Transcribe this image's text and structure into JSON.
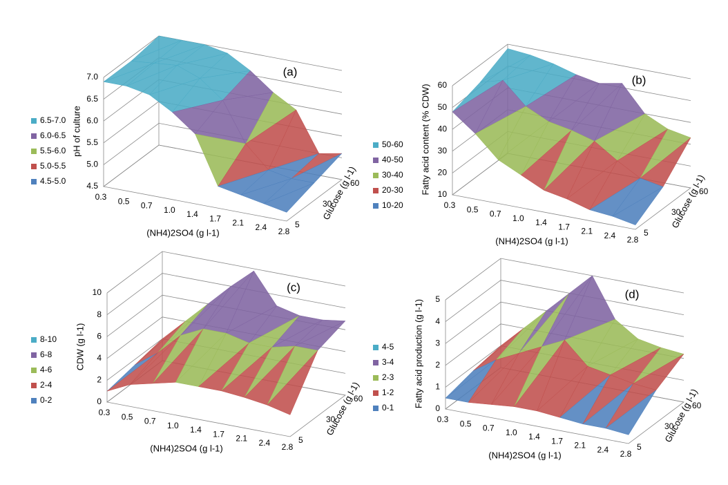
{
  "chart_data": [
    {
      "type": "surface",
      "panel_label": "(a)",
      "y_label": "pH of culture",
      "x_label": "(NH4)2SO4 (g l-1)",
      "z_label": "Glucose (g l-1)",
      "categories": [
        "0.3",
        "0.5",
        "0.7",
        "1.0",
        "1.4",
        "1.7",
        "2.1",
        "2.4",
        "2.8"
      ],
      "series": [
        {
          "name": "5",
          "values": [
            6.9,
            6.9,
            6.8,
            6.5,
            6.1,
            5.0,
            4.9,
            4.8,
            4.7
          ]
        },
        {
          "name": "30",
          "values": [
            6.9,
            6.95,
            7.0,
            6.8,
            6.4,
            5.5,
            5.0,
            4.9,
            4.9
          ]
        },
        {
          "name": "60",
          "values": [
            7.0,
            7.0,
            7.0,
            6.9,
            6.6,
            6.2,
            5.9,
            5.0,
            5.1
          ]
        }
      ],
      "ylim": [
        4.5,
        7
      ],
      "yticks": [
        4.5,
        {
          "value": 5,
          "label": "5.0"
        },
        5.5,
        {
          "value": 6,
          "label": "6.0"
        },
        6.5,
        {
          "value": 7,
          "label": "7.0"
        }
      ],
      "legend": [
        {
          "name": "6.5-7.0",
          "color": "#4bacc6"
        },
        {
          "name": "6.0-6.5",
          "color": "#8064a2"
        },
        {
          "name": "5.5-6.0",
          "color": "#9bbb59"
        },
        {
          "name": "5.0-5.5",
          "color": "#c0504d"
        },
        {
          "name": "4.5-5.0",
          "color": "#4f81bd"
        }
      ]
    },
    {
      "type": "surface",
      "panel_label": "(b)",
      "y_label": "Fatty acid content (% CDW)",
      "x_label": "(NH4)2SO4 (g l-1)",
      "z_label": "Glucose (g l-1)",
      "categories": [
        "0.3",
        "0.5",
        "0.7",
        "1.0",
        "1.4",
        "1.7",
        "2.1",
        "2.4",
        "2.8"
      ],
      "series": [
        {
          "name": "5",
          "values": [
            48,
            40,
            30,
            25,
            20,
            18,
            15,
            14,
            12
          ]
        },
        {
          "name": "30",
          "values": [
            52,
            55,
            45,
            40,
            38,
            35,
            28,
            22,
            20
          ]
        },
        {
          "name": "60",
          "values": [
            58,
            57,
            55,
            52,
            50,
            52,
            40,
            35,
            33
          ]
        }
      ],
      "ylim": [
        10,
        60
      ],
      "yticks": [
        10,
        20,
        30,
        40,
        50,
        60
      ],
      "legend": [
        {
          "name": "50-60",
          "color": "#4bacc6"
        },
        {
          "name": "40-50",
          "color": "#8064a2"
        },
        {
          "name": "30-40",
          "color": "#9bbb59"
        },
        {
          "name": "20-30",
          "color": "#c0504d"
        },
        {
          "name": "10-20",
          "color": "#4f81bd"
        }
      ]
    },
    {
      "type": "surface",
      "panel_label": "(c)",
      "y_label": "CDW (g l-1)",
      "x_label": "(NH4)2SO4 (g l-1)",
      "z_label": "Glucose (g l-1)",
      "categories": [
        "0.3",
        "0.5",
        "0.7",
        "1.0",
        "1.4",
        "1.7",
        "2.1",
        "2.4",
        "2.8"
      ],
      "series": [
        {
          "name": "5",
          "values": [
            1,
            2,
            2.5,
            3,
            3,
            3,
            2.8,
            2.5,
            2
          ]
        },
        {
          "name": "30",
          "values": [
            1.5,
            3,
            5,
            6,
            6,
            5.5,
            5.5,
            6,
            6
          ]
        },
        {
          "name": "60",
          "values": [
            2,
            4,
            6,
            8,
            9.8,
            7,
            6.5,
            6.5,
            6.8
          ]
        }
      ],
      "ylim": [
        0,
        10
      ],
      "yticks": [
        0,
        2,
        4,
        6,
        8,
        10
      ],
      "legend": [
        {
          "name": "8-10",
          "color": "#4bacc6"
        },
        {
          "name": "6-8",
          "color": "#8064a2"
        },
        {
          "name": "4-6",
          "color": "#9bbb59"
        },
        {
          "name": "2-4",
          "color": "#c0504d"
        },
        {
          "name": "0-2",
          "color": "#4f81bd"
        }
      ]
    },
    {
      "type": "surface",
      "panel_label": "(d)",
      "y_label": "Fatty acid production (g l-1)",
      "x_label": "(NH4)2SO4 (g l-1)",
      "z_label": "Glucose (g l-1)",
      "categories": [
        "0.3",
        "0.5",
        "0.7",
        "1.0",
        "1.4",
        "1.7",
        "2.1",
        "2.4",
        "2.8"
      ],
      "series": [
        {
          "name": "5",
          "values": [
            0.5,
            0.5,
            0.6,
            0.7,
            0.7,
            0.6,
            0.5,
            0.5,
            0.4
          ]
        },
        {
          "name": "30",
          "values": [
            0.8,
            1.5,
            2,
            2.5,
            3,
            2,
            1.8,
            1.6,
            1.5
          ]
        },
        {
          "name": "60",
          "values": [
            1,
            2,
            3,
            4,
            5,
            3.2,
            2.5,
            2.3,
            2.2
          ]
        }
      ],
      "ylim": [
        0,
        5
      ],
      "yticks": [
        0,
        1,
        2,
        3,
        4,
        5
      ],
      "legend": [
        {
          "name": "4-5",
          "color": "#4bacc6"
        },
        {
          "name": "3-4",
          "color": "#8064a2"
        },
        {
          "name": "2-3",
          "color": "#9bbb59"
        },
        {
          "name": "1-2",
          "color": "#c0504d"
        },
        {
          "name": "0-1",
          "color": "#4f81bd"
        }
      ]
    }
  ]
}
